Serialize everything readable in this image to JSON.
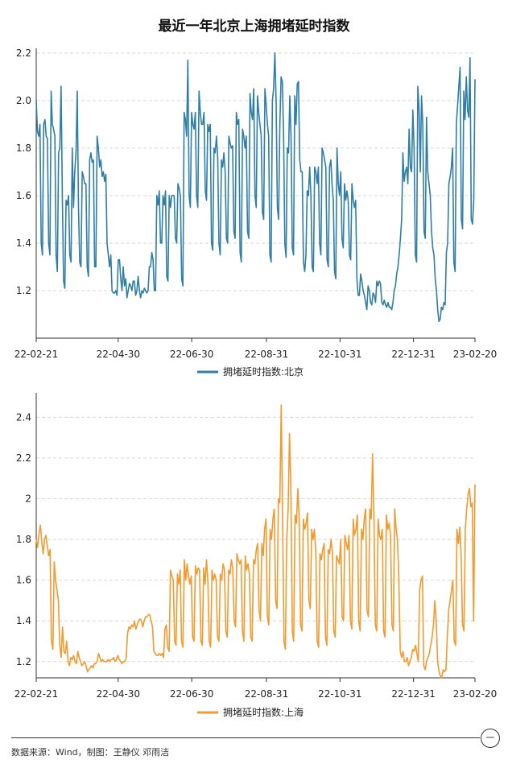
{
  "title": "最近一年北京上海拥堵延时指数",
  "footer": "数据来源：Wind，制图：王静仪 邓雨洁",
  "logo_text": "一",
  "chart_data": [
    {
      "type": "line",
      "legend": "拥堵延时指数:北京",
      "color": "#2f7ea6",
      "ylim": [
        1.0,
        2.22
      ],
      "yticks": [
        "1.2",
        "1.4",
        "1.6",
        "1.8",
        "2.0",
        "2.2"
      ],
      "ytick_values": [
        1.2,
        1.4,
        1.6,
        1.8,
        2.0,
        2.2
      ],
      "xticks": [
        "22-02-21",
        "22-04-30",
        "22-06-30",
        "22-08-31",
        "22-10-31",
        "22-12-31",
        "23-02-20"
      ],
      "xtick_days": [
        0,
        68,
        129,
        191,
        252,
        313,
        364
      ],
      "grid": true,
      "values": [
        2.0,
        1.87,
        1.85,
        1.9,
        1.4,
        1.35,
        1.9,
        1.92,
        1.85,
        1.84,
        1.4,
        1.35,
        2.04,
        1.9,
        1.88,
        1.85,
        1.35,
        1.28,
        1.78,
        1.8,
        2.06,
        1.6,
        1.24,
        1.21,
        1.58,
        1.56,
        1.6,
        1.35,
        1.32,
        1.8,
        1.55,
        1.7,
        1.78,
        2.04,
        1.55,
        1.32,
        1.3,
        1.7,
        1.68,
        1.65,
        1.65,
        1.3,
        1.26,
        1.75,
        1.78,
        1.74,
        1.75,
        1.3,
        1.3,
        1.85,
        1.8,
        1.72,
        1.75,
        1.68,
        1.7,
        1.66,
        1.69,
        1.4,
        1.35,
        1.3,
        1.35,
        1.2,
        1.19,
        1.19,
        1.2,
        1.18,
        1.33,
        1.33,
        1.25,
        1.2,
        1.3,
        1.22,
        1.25,
        1.17,
        1.2,
        1.23,
        1.22,
        1.2,
        1.24,
        1.24,
        1.18,
        1.2,
        1.26,
        1.2,
        1.17,
        1.2,
        1.19,
        1.21,
        1.2,
        1.19,
        1.2,
        1.3,
        1.3,
        1.36,
        1.33,
        1.2,
        1.2,
        1.6,
        1.56,
        1.62,
        1.4,
        1.4,
        1.6,
        1.56,
        1.62,
        1.26,
        1.24,
        1.6,
        1.55,
        1.6,
        1.6,
        1.6,
        1.42,
        1.4,
        1.65,
        1.63,
        1.6,
        1.25,
        1.22,
        1.95,
        1.92,
        1.85,
        2.17,
        1.6,
        1.55,
        1.95,
        1.9,
        1.88,
        1.95,
        1.6,
        1.55,
        2.04,
        1.95,
        1.9,
        1.9,
        1.95,
        1.62,
        1.58,
        1.9,
        1.87,
        1.9,
        1.4,
        1.37,
        1.8,
        1.78,
        1.85,
        1.76,
        1.4,
        1.35,
        1.75,
        1.72,
        1.78,
        1.7,
        1.42,
        1.4,
        1.85,
        1.82,
        1.8,
        1.81,
        1.45,
        1.42,
        1.95,
        1.9,
        1.92,
        1.36,
        1.32,
        1.88,
        1.85,
        1.8,
        1.85,
        1.45,
        1.42,
        2.03,
        1.95,
        1.92,
        2.05,
        1.6,
        1.55,
        2.02,
        1.95,
        1.9,
        1.85,
        1.53,
        1.5,
        2.05,
        1.98,
        1.9,
        1.85,
        1.35,
        1.32,
        2.0,
        2.05,
        2.2,
        2.0,
        1.55,
        1.5,
        1.9,
        2.1,
        2.08,
        1.86,
        1.4,
        1.34,
        1.8,
        1.78,
        2.02,
        1.85,
        1.38,
        1.35,
        2.02,
        1.9,
        2.07,
        2.08,
        1.75,
        1.7,
        1.7,
        1.32,
        1.28,
        1.35,
        1.62,
        1.6,
        1.72,
        1.6,
        1.3,
        1.28,
        1.72,
        1.7,
        1.65,
        1.72,
        1.4,
        1.35,
        1.8,
        1.78,
        1.75,
        1.72,
        1.33,
        1.3,
        1.72,
        1.75,
        1.65,
        1.58,
        1.28,
        1.25,
        1.8,
        1.65,
        1.6,
        1.7,
        1.42,
        1.38,
        1.65,
        1.58,
        1.62,
        1.58,
        1.35,
        1.33,
        1.65,
        1.58,
        1.55,
        1.58,
        1.25,
        1.18,
        1.18,
        1.27,
        1.24,
        1.2,
        1.18,
        1.15,
        1.12,
        1.22,
        1.2,
        1.15,
        1.14,
        1.19,
        1.18,
        1.15,
        1.24,
        1.22,
        1.24,
        1.23,
        1.15,
        1.14,
        1.16,
        1.14,
        1.13,
        1.15,
        1.13,
        1.13,
        1.12,
        1.15,
        1.2,
        1.22,
        1.27,
        1.3,
        1.35,
        1.42,
        1.5,
        1.78,
        1.66,
        1.7,
        1.72,
        1.65,
        1.88,
        1.72,
        1.7,
        1.96,
        1.8,
        1.35,
        1.32,
        2.06,
        1.96,
        1.7,
        2.02,
        1.9,
        1.45,
        1.42,
        1.93,
        1.7,
        1.65,
        1.6,
        1.45,
        1.38,
        1.35,
        1.25,
        1.2,
        1.12,
        1.07,
        1.08,
        1.13,
        1.12,
        1.15,
        1.14,
        1.36,
        1.4,
        1.65,
        1.68,
        1.72,
        1.8,
        1.32,
        1.28,
        1.9,
        1.98,
        2.06,
        2.14,
        1.5,
        1.46,
        2.04,
        1.92,
        2.1,
        1.96,
        1.93,
        2.18,
        1.5,
        1.48,
        1.58,
        2.09
      ],
      "series_name": "北京"
    },
    {
      "type": "line",
      "legend": "拥堵延时指数:上海",
      "color": "#f29a2e",
      "ylim": [
        1.12,
        2.52
      ],
      "yticks": [
        "1.2",
        "1.4",
        "1.6",
        "1.8",
        "2",
        "2.2",
        "2.4"
      ],
      "ytick_values": [
        1.2,
        1.4,
        1.6,
        1.8,
        2.0,
        2.2,
        2.4
      ],
      "xticks": [
        "22-02-21",
        "22-04-30",
        "22-06-30",
        "22-08-31",
        "22-10-31",
        "22-12-31",
        "23-02-20"
      ],
      "xtick_days": [
        0,
        68,
        129,
        191,
        252,
        313,
        364
      ],
      "grid": true,
      "values": [
        1.8,
        1.76,
        1.83,
        1.87,
        1.79,
        1.73,
        1.8,
        1.82,
        1.77,
        1.72,
        1.75,
        1.3,
        1.26,
        1.69,
        1.6,
        1.55,
        1.5,
        1.28,
        1.22,
        1.37,
        1.25,
        1.24,
        1.3,
        1.2,
        1.18,
        1.22,
        1.21,
        1.23,
        1.2,
        1.19,
        1.25,
        1.22,
        1.2,
        1.18,
        1.19,
        1.2,
        1.18,
        1.15,
        1.16,
        1.17,
        1.18,
        1.17,
        1.19,
        1.19,
        1.2,
        1.24,
        1.22,
        1.2,
        1.21,
        1.2,
        1.2,
        1.2,
        1.21,
        1.2,
        1.21,
        1.21,
        1.22,
        1.2,
        1.21,
        1.23,
        1.21,
        1.2,
        1.19,
        1.2,
        1.2,
        1.22,
        1.34,
        1.37,
        1.36,
        1.38,
        1.37,
        1.4,
        1.36,
        1.38,
        1.4,
        1.41,
        1.4,
        1.37,
        1.4,
        1.42,
        1.42,
        1.43,
        1.43,
        1.4,
        1.37,
        1.25,
        1.24,
        1.23,
        1.23,
        1.24,
        1.23,
        1.24,
        1.22,
        1.36,
        1.38,
        1.27,
        1.25,
        1.65,
        1.62,
        1.6,
        1.3,
        1.28,
        1.63,
        1.58,
        1.65,
        1.3,
        1.27,
        1.7,
        1.6,
        1.68,
        1.62,
        1.58,
        1.62,
        1.32,
        1.3,
        1.67,
        1.63,
        1.66,
        1.65,
        1.3,
        1.28,
        1.66,
        1.58,
        1.7,
        1.6,
        1.3,
        1.27,
        1.65,
        1.6,
        1.63,
        1.6,
        1.32,
        1.3,
        1.63,
        1.6,
        1.68,
        1.65,
        1.35,
        1.32,
        1.65,
        1.63,
        1.7,
        1.66,
        1.4,
        1.37,
        1.73,
        1.7,
        1.68,
        1.7,
        1.35,
        1.3,
        1.72,
        1.65,
        1.68,
        1.63,
        1.32,
        1.3,
        1.7,
        1.68,
        1.75,
        1.78,
        1.45,
        1.4,
        1.78,
        1.72,
        1.85,
        1.9,
        1.42,
        1.38,
        1.85,
        1.8,
        1.9,
        1.95,
        1.5,
        1.46,
        2.0,
        1.98,
        2.46,
        1.9,
        1.3,
        1.26,
        1.8,
        1.95,
        2.32,
        2.05,
        1.35,
        1.3,
        1.92,
        1.88,
        2.05,
        1.9,
        1.38,
        1.35,
        1.9,
        1.85,
        1.88,
        1.93,
        1.5,
        1.46,
        1.85,
        1.8,
        1.85,
        1.73,
        1.3,
        1.27,
        1.73,
        1.7,
        1.75,
        1.78,
        1.32,
        1.28,
        1.75,
        1.73,
        1.8,
        1.73,
        1.35,
        1.32,
        1.72,
        1.7,
        1.68,
        1.8,
        1.42,
        1.4,
        1.82,
        1.78,
        1.75,
        1.82,
        1.4,
        1.36,
        1.9,
        1.82,
        1.85,
        1.92,
        1.4,
        1.35,
        1.85,
        1.8,
        1.9,
        1.95,
        1.45,
        1.42,
        1.95,
        1.9,
        2.22,
        1.9,
        1.38,
        1.35,
        1.9,
        1.82,
        1.8,
        1.85,
        1.35,
        1.32,
        1.92,
        1.85,
        1.88,
        1.82,
        1.38,
        1.35,
        1.95,
        1.85,
        1.8,
        1.6,
        1.25,
        1.22,
        1.25,
        1.2,
        1.2,
        1.22,
        1.18,
        1.2,
        1.22,
        1.26,
        1.25,
        1.28,
        1.24,
        1.2,
        1.55,
        1.6,
        1.62,
        1.18,
        1.16,
        1.2,
        1.22,
        1.24,
        1.28,
        1.32,
        1.38,
        1.5,
        1.4,
        1.2,
        1.15,
        1.13,
        1.12,
        1.16,
        1.15,
        1.16,
        1.32,
        1.45,
        1.5,
        1.55,
        1.6,
        1.3,
        1.28,
        1.85,
        1.78,
        1.86,
        1.72,
        1.38,
        1.35,
        1.85,
        1.95,
        2.02,
        2.05,
        1.96,
        1.98,
        1.4,
        2.07
      ],
      "series_name": "上海"
    }
  ]
}
